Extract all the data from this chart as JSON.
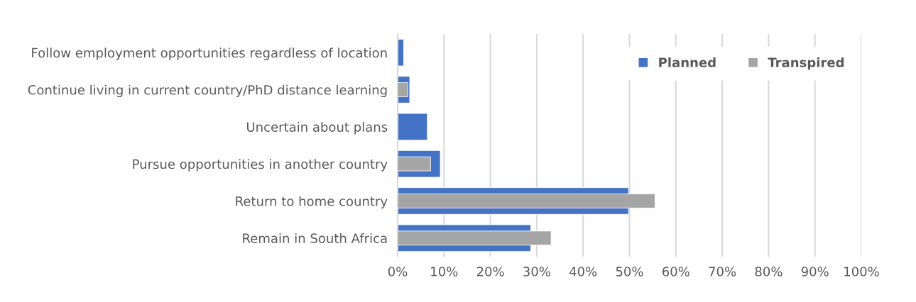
{
  "chart_data": {
    "type": "bar",
    "orientation": "horizontal",
    "categories": [
      "Follow employment opportunities regardless of location",
      "Continue living in current country/PhD distance learning",
      "Uncertain about plans",
      "Pursue opportunities in another country",
      "Return to home country",
      "Remain in South Africa"
    ],
    "series": [
      {
        "name": "Planned",
        "color": "#4472c4",
        "values": [
          1.3,
          2.6,
          6.4,
          9.2,
          49.8,
          28.7
        ]
      },
      {
        "name": "Transpired",
        "color": "#a5a5a5",
        "values": [
          null,
          2.2,
          null,
          7.1,
          55.5,
          33.1
        ]
      }
    ],
    "xlim": [
      0,
      100
    ],
    "xticks": [
      {
        "value": 0,
        "label": "0%"
      },
      {
        "value": 10,
        "label": "10%"
      },
      {
        "value": 20,
        "label": "20%"
      },
      {
        "value": 30,
        "label": "30%"
      },
      {
        "value": 40,
        "label": "40%"
      },
      {
        "value": 50,
        "label": "50%"
      },
      {
        "value": 60,
        "label": "60%"
      },
      {
        "value": 70,
        "label": "70%"
      },
      {
        "value": 80,
        "label": "80%"
      },
      {
        "value": 90,
        "label": "90%"
      },
      {
        "value": 100,
        "label": "100%"
      }
    ],
    "grid": "x",
    "legend": "top right"
  }
}
